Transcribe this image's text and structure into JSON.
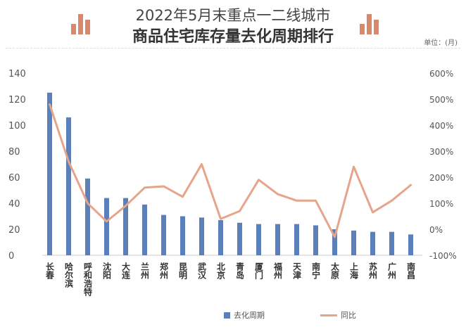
{
  "header": {
    "title_line1": "2022年5月末重点一二线城市",
    "title_line2": "商品住宅库存量去化周期排行",
    "unit": "单位：(月)"
  },
  "chart_data": {
    "type": "bar+line",
    "categories": [
      "长春",
      "哈尔滨",
      "呼和浩特",
      "沈阳",
      "大连",
      "兰州",
      "郑州",
      "昆明",
      "武汉",
      "北京",
      "青岛",
      "厦门",
      "福州",
      "天津",
      "南宁",
      "太原",
      "上海",
      "苏州",
      "广州",
      "南昌"
    ],
    "series": [
      {
        "name": "去化周期",
        "type": "bar",
        "axis": "left",
        "values": [
          125,
          106,
          59,
          44,
          44,
          39,
          31,
          30,
          29,
          27,
          25,
          24,
          24,
          24,
          23,
          20,
          19,
          18,
          18,
          16
        ]
      },
      {
        "name": "同比",
        "type": "line",
        "axis": "right",
        "values": [
          480,
          260,
          100,
          30,
          90,
          160,
          165,
          125,
          250,
          40,
          70,
          190,
          135,
          110,
          110,
          -30,
          240,
          65,
          110,
          170
        ]
      }
    ],
    "left_axis": {
      "min": 0,
      "max": 140,
      "ticks": [
        0,
        20,
        40,
        60,
        80,
        100,
        120,
        140
      ]
    },
    "right_axis": {
      "min": -100,
      "max": 600,
      "ticks": [
        "-100%",
        "0%",
        "100%",
        "200%",
        "300%",
        "400%",
        "500%",
        "600%"
      ]
    },
    "colors": {
      "bar": "#5b7fb8",
      "line": "#e6a48a"
    },
    "legend_position": "bottom"
  }
}
